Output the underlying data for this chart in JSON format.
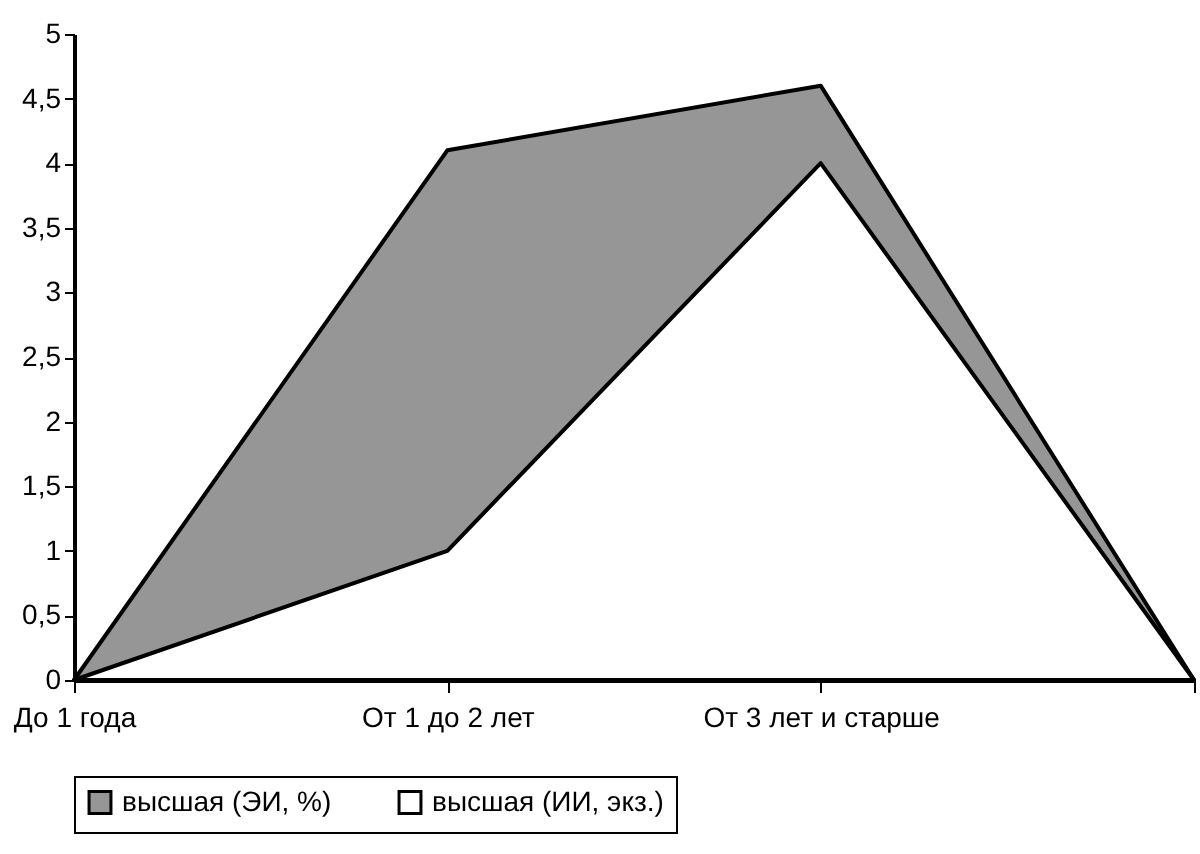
{
  "chart_data": {
    "type": "area",
    "categories": [
      "До 1 года",
      "От 1 до 2 лет",
      "От 3 лет и старше",
      null
    ],
    "series": [
      {
        "name": "высшая (ЭИ, %)",
        "color": "#969696",
        "values": [
          0,
          4.1,
          4.6,
          0
        ]
      },
      {
        "name": "высшая (ИИ, экз.)",
        "color": "#ffffff",
        "values": [
          0,
          1.0,
          4.0,
          0
        ]
      }
    ],
    "ylim": [
      0,
      5
    ],
    "yticks": [
      0,
      {
        "value": 0.5,
        "label": "0,5"
      },
      1,
      {
        "value": 1.5,
        "label": "1,5"
      },
      2,
      {
        "value": 2.5,
        "label": "2,5"
      },
      3,
      {
        "value": 3.5,
        "label": "3,5"
      },
      4,
      {
        "value": 4.5,
        "label": "4,5"
      },
      5
    ],
    "grid": false,
    "legend": "bottom"
  }
}
